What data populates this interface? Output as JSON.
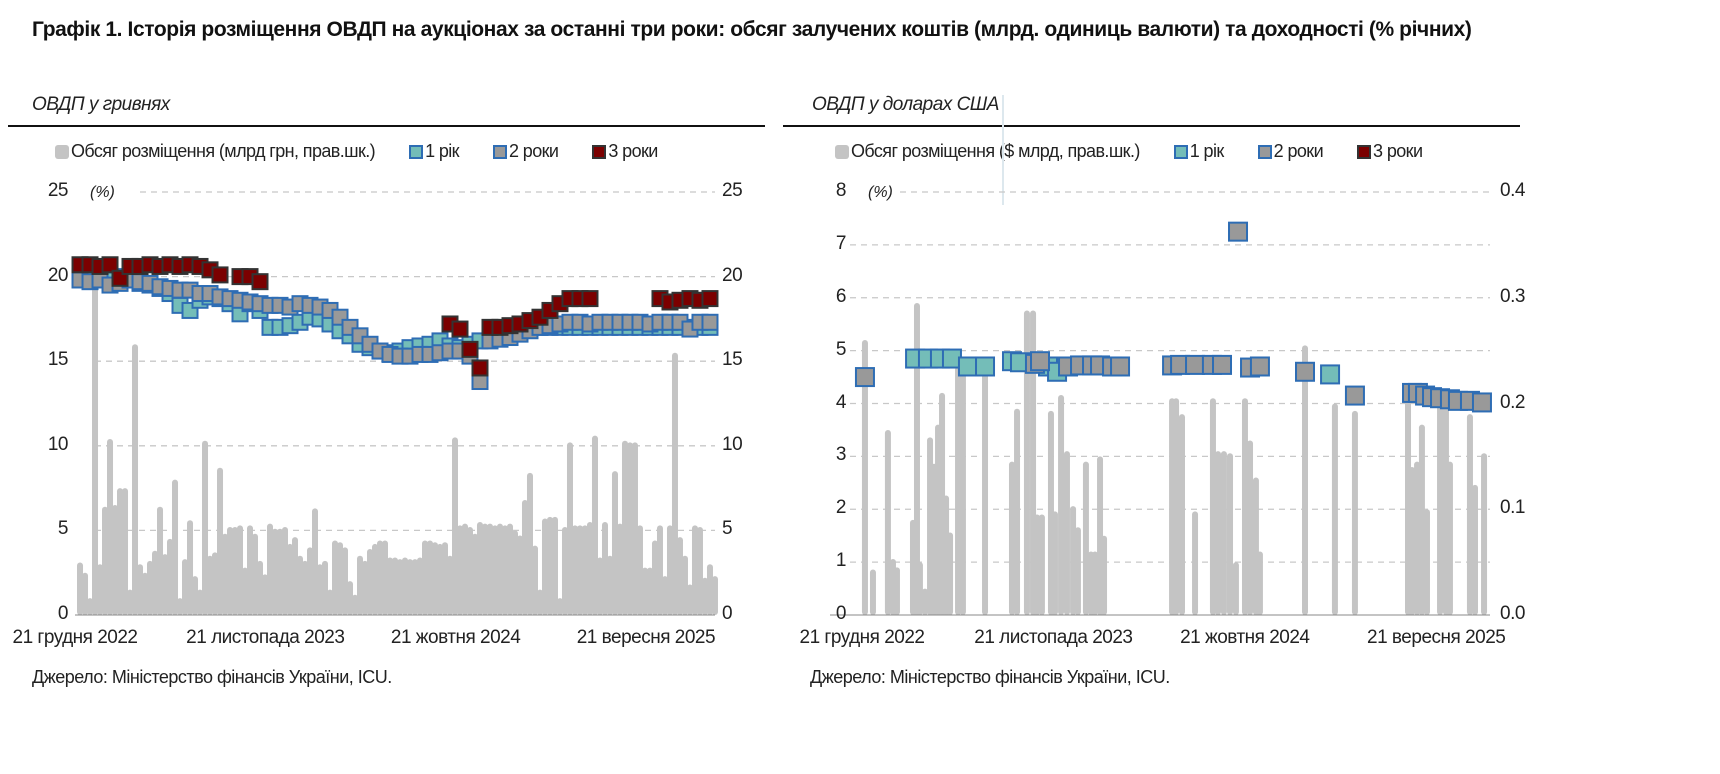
{
  "title": "Графік 1. Історія розміщення ОВДП на аукціонах за останні три роки: обсяг залучених коштів (млрд. одиниць валюти) та доходності (% річних)",
  "colors": {
    "volume": "#c4c4c4",
    "y1": "#74bdb8",
    "y2": "#999999",
    "y3": "#7b0000",
    "border_blue": "#2e6db4",
    "border_dark": "#333333",
    "grid": "#c8c8c8"
  },
  "chart_data": [
    {
      "type": "bar+scatter",
      "subtitle": "ОВДП у гривнях",
      "unit_label": "(%)",
      "legend": [
        "Обсяг розміщення (млрд грн, прав.шк.)",
        "1 рік",
        "2 роки",
        "3 роки"
      ],
      "x_ticks": [
        "21 грудня 2022",
        "21 листопада 2023",
        "21 жовтня 2024",
        "21 вересня 2025"
      ],
      "x_tick_months": [
        0,
        11,
        22,
        33
      ],
      "y_left": {
        "ticks": [
          "0",
          "5",
          "10",
          "15",
          "20",
          "25"
        ],
        "range": [
          0,
          25
        ]
      },
      "y_right": {
        "ticks": [
          "0",
          "5",
          "10",
          "15",
          "20",
          "25"
        ],
        "range": [
          0,
          25
        ]
      },
      "volume": {
        "x_start_month": 0.29,
        "x_step_month": 0.289,
        "values": [
          3.1,
          2.5,
          1,
          20,
          3,
          6.4,
          10.4,
          6.5,
          7.5,
          7.5,
          1.5,
          16,
          3,
          2.5,
          3.2,
          3.8,
          6.4,
          3.6,
          4.5,
          8,
          1,
          3.3,
          5.6,
          2.3,
          1.5,
          10.3,
          3.5,
          3.7,
          8.7,
          4.8,
          5.2,
          5.2,
          5.3,
          2.8,
          5.3,
          4.8,
          3.2,
          2.4,
          5.4,
          5.1,
          5.1,
          5.2,
          4.2,
          4.6,
          3.5,
          3.2,
          4,
          6.3,
          3,
          3.2,
          1.5,
          4.4,
          4.3,
          4,
          2,
          1.2,
          3.5,
          3.2,
          3.9,
          4.2,
          4.4,
          4.4,
          3.4,
          3.4,
          3.3,
          3.4,
          3.3,
          3.3,
          3.4,
          4.4,
          4.4,
          4.3,
          4.2,
          4.3,
          3.5,
          10.5,
          5.3,
          5.4,
          5.2,
          4.8,
          5.5,
          5.4,
          5.4,
          5.3,
          5.4,
          5.3,
          5.4,
          5,
          4.7,
          6.8,
          8.4,
          4.1,
          1.5,
          5.7,
          5.8,
          5.8,
          1,
          5.2,
          10.2,
          5.3,
          5.3,
          5.3,
          5.5,
          10.6,
          3.4,
          5.5,
          3.5,
          8.5,
          5.4,
          10.3,
          10.2,
          10.2,
          5.3,
          2.8,
          2.8,
          4.4,
          5.3,
          2.3,
          5.3,
          15.5,
          4.6,
          3.5,
          1.8,
          5.3,
          5.2,
          2.2,
          3,
          2.3
        ]
      },
      "yields": {
        "x_start_month": 0.29,
        "x_step_month": 0.578,
        "y1": [
          20.0,
          19.9,
          20.1,
          19.8,
          20.0,
          19.9,
          19.6,
          19.5,
          19.3,
          19.0,
          18.3,
          18.0,
          18.6,
          18.8,
          18.7,
          18.4,
          17.8,
          18.4,
          18.0,
          17.0,
          17.0,
          17.1,
          17.3,
          17.6,
          17.5,
          17.2,
          16.8,
          16.5,
          16.0,
          15.8,
          15.6,
          15.5,
          15.6,
          15.8,
          15.9,
          16.0,
          16.2,
          15.9,
          15.8,
          16.0,
          16.2,
          16.3,
          16.5,
          16.6,
          16.8,
          16.9,
          17.0,
          17.0,
          17.0,
          17.0,
          17.0,
          17.0,
          17.0,
          17.0,
          17.0,
          17.0,
          17.0,
          17.0,
          17.0,
          17.0,
          17.0,
          17.0,
          17.0,
          17.0
        ],
        "y2": [
          19.8,
          19.7,
          19.8,
          19.5,
          19.6,
          19.8,
          19.7,
          19.6,
          19.4,
          19.3,
          19.2,
          19.2,
          19.0,
          19.0,
          18.8,
          18.7,
          18.6,
          18.5,
          18.4,
          18.3,
          18.3,
          18.2,
          18.4,
          18.3,
          18.2,
          18.0,
          17.6,
          17.0,
          16.5,
          16.0,
          15.6,
          15.4,
          15.3,
          15.3,
          15.4,
          15.4,
          15.5,
          15.6,
          15.6,
          15.3,
          13.8,
          16.2,
          16.3,
          16.4,
          16.6,
          16.8,
          17.0,
          17.1,
          17.2,
          17.3,
          17.3,
          17.2,
          17.3,
          17.3,
          17.3,
          17.3,
          17.3,
          17.2,
          17.3,
          17.3,
          17.3,
          16.9,
          17.3,
          17.3
        ],
        "y3": [
          20.7,
          20.7,
          20.6,
          20.7,
          19.9,
          20.6,
          20.6,
          20.7,
          20.6,
          20.7,
          20.6,
          20.7,
          20.6,
          20.4,
          20.1,
          null,
          20.0,
          20.0,
          19.7,
          null,
          null,
          null,
          null,
          null,
          null,
          null,
          null,
          null,
          null,
          null,
          null,
          null,
          null,
          null,
          null,
          null,
          null,
          17.2,
          16.9,
          15.7,
          14.6,
          17.0,
          17.0,
          17.1,
          17.2,
          17.4,
          17.6,
          18.0,
          18.4,
          18.7,
          18.7,
          18.7,
          null,
          null,
          null,
          null,
          null,
          null,
          18.7,
          18.5,
          18.6,
          18.7,
          18.6,
          18.7
        ]
      },
      "source": "Джерело: Міністерство фінансів України, ICU."
    },
    {
      "type": "bar+scatter",
      "subtitle": "ОВДП у доларах США",
      "unit_label": "(%)",
      "legend": [
        "Обсяг розміщення ($ млрд, прав.шк.)",
        "1 рік",
        "2 роки",
        "3 роки"
      ],
      "x_ticks": [
        "21 грудня 2022",
        "21 листопада 2023",
        "21 жовтня 2024",
        "21 вересня 2025"
      ],
      "x_tick_months": [
        0,
        11,
        22,
        33
      ],
      "y_left": {
        "ticks": [
          "0",
          "1",
          "2",
          "3",
          "4",
          "5",
          "6",
          "7",
          "8"
        ],
        "range": [
          0,
          8
        ]
      },
      "y_right": {
        "ticks": [
          "0.0",
          "0.1",
          "0.2",
          "0.3",
          "0.4"
        ],
        "range": [
          0,
          0.4
        ]
      },
      "volume": {
        "x_months": [
          0.17,
          0.63,
          1.49,
          1.78,
          2.01,
          2.93,
          3.16,
          3.33,
          3.62,
          3.91,
          4.14,
          4.37,
          4.6,
          4.83,
          5.06,
          5.52,
          5.8,
          7.07,
          8.62,
          8.91,
          9.48,
          9.83,
          10.06,
          10.34,
          10.86,
          11.09,
          11.44,
          11.78,
          12.13,
          12.41,
          12.87,
          13.16,
          13.39,
          13.68,
          13.91,
          17.82,
          18.05,
          18.39,
          19.14,
          20.17,
          20.46,
          20.8,
          21.15,
          21.49,
          22.01,
          22.3,
          22.64,
          22.87,
          25.46,
          27.18,
          28.33,
          31.38,
          31.61,
          31.9,
          32.18,
          32.47,
          33.22,
          33.56,
          33.79,
          34.94,
          35.23,
          35.75
        ],
        "values": [
          0.26,
          0.043,
          0.175,
          0.053,
          0.045,
          0.09,
          0.295,
          0.05,
          0.025,
          0.168,
          0.143,
          0.18,
          0.21,
          0.113,
          0.078,
          0.235,
          0.235,
          0.235,
          0.145,
          0.195,
          0.288,
          0.288,
          0.095,
          0.095,
          0.193,
          0.098,
          0.208,
          0.155,
          0.103,
          0.083,
          0.145,
          0.06,
          0.06,
          0.15,
          0.075,
          0.205,
          0.205,
          0.19,
          0.098,
          0.205,
          0.155,
          0.155,
          0.153,
          0.05,
          0.205,
          0.165,
          0.13,
          0.06,
          0.255,
          0.2,
          0.193,
          0.205,
          0.14,
          0.145,
          0.18,
          0.1,
          0.205,
          0.205,
          0.145,
          0.19,
          0.123,
          0.153
        ]
      },
      "yields": {
        "y1": [
          [
            3.05,
            4.85
          ],
          [
            3.79,
            4.85
          ],
          [
            4.48,
            4.85
          ],
          [
            5.17,
            4.85
          ],
          [
            6.09,
            4.7
          ],
          [
            7.07,
            4.7
          ],
          [
            8.62,
            4.8
          ],
          [
            9.08,
            4.78
          ],
          [
            10.69,
            4.7
          ],
          [
            11.21,
            4.6
          ],
          [
            26.9,
            4.55
          ]
        ],
        "y2": [
          [
            0.17,
            4.5
          ],
          [
            9.94,
            4.75
          ],
          [
            10.23,
            4.8
          ],
          [
            11.84,
            4.7
          ],
          [
            12.53,
            4.72
          ],
          [
            13.22,
            4.72
          ],
          [
            13.68,
            4.72
          ],
          [
            14.37,
            4.7
          ],
          [
            14.83,
            4.7
          ],
          [
            17.82,
            4.72
          ],
          [
            18.28,
            4.73
          ],
          [
            19.14,
            4.73
          ],
          [
            20.11,
            4.73
          ],
          [
            20.69,
            4.73
          ],
          [
            21.61,
            7.25
          ],
          [
            22.3,
            4.68
          ],
          [
            22.87,
            4.7
          ],
          [
            25.46,
            4.6
          ],
          [
            28.33,
            4.15
          ],
          [
            31.61,
            4.2
          ],
          [
            31.95,
            4.2
          ],
          [
            32.36,
            4.15
          ],
          [
            32.76,
            4.12
          ],
          [
            33.22,
            4.1
          ],
          [
            33.79,
            4.08
          ],
          [
            34.25,
            4.05
          ],
          [
            34.94,
            4.05
          ],
          [
            35.63,
            4.02
          ]
        ]
      },
      "source": "Джерело: Міністерство фінансів України, ICU."
    }
  ]
}
